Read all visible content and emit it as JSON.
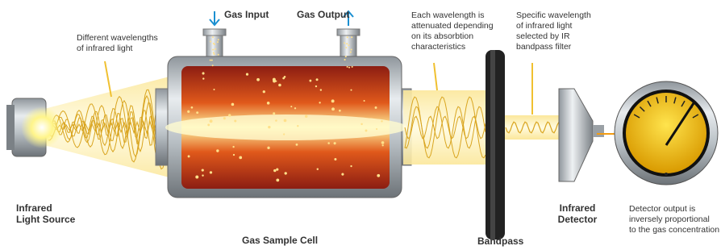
{
  "labels": {
    "gas_input": "Gas Input",
    "gas_output": "Gas Output",
    "wavelengths": [
      "Different wavelengths",
      "of infrared light"
    ],
    "attenuation": [
      "Each wavelength is",
      "attenuated depending",
      "on its absorbtion",
      "characteristics"
    ],
    "specific": [
      "Specific wavelength",
      "of infrared light",
      "selected by IR",
      "bandpass filter"
    ],
    "source": [
      "Infrared",
      "Light Source"
    ],
    "cell": "Gas Sample Cell",
    "filter": [
      "Bandpass"
    ],
    "detector": [
      "Infrared",
      "Detector"
    ],
    "output": [
      "Detector output is",
      "inversely proportional",
      "to the gas concentration"
    ]
  }
}
